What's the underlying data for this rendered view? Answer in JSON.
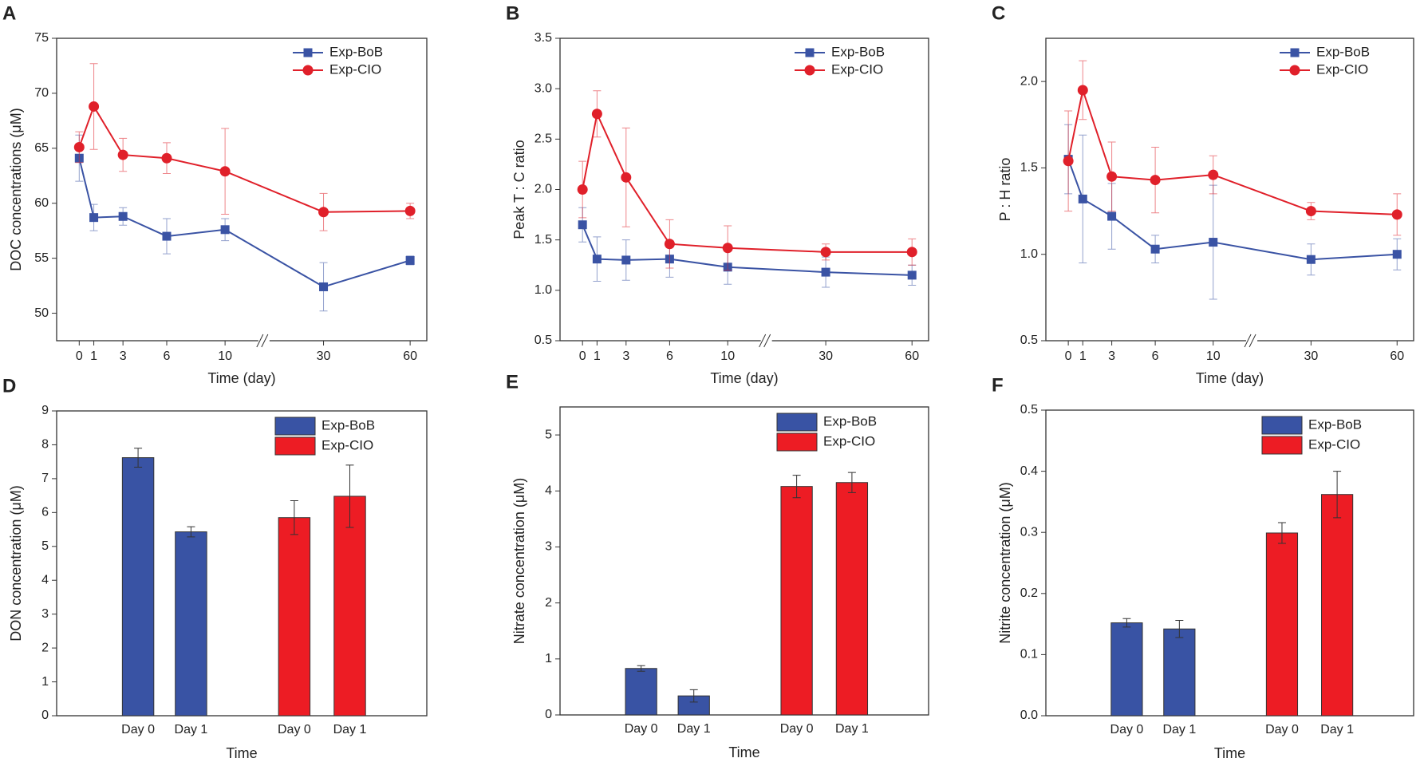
{
  "chart_data": [
    {
      "type": "line",
      "panel_label": "A",
      "x_label": "Time (day)",
      "y_label": "DOC concentrations (μM)",
      "x": [
        0,
        1,
        3,
        6,
        10,
        30,
        60
      ],
      "xticks": [
        0,
        1,
        3,
        6,
        10,
        30,
        60
      ],
      "xlim": [
        0,
        60
      ],
      "xbreak": [
        10,
        30
      ],
      "ylim": [
        47.5,
        75
      ],
      "yticks": [
        50,
        55,
        60,
        65,
        70,
        75
      ],
      "legend": "upper right",
      "series": [
        {
          "name": "Exp-BoB",
          "color": "#3a53a4",
          "marker": "square",
          "values": [
            64.1,
            58.7,
            58.8,
            57.0,
            57.6,
            52.4,
            54.8
          ],
          "errors": [
            2.1,
            1.2,
            0.8,
            1.6,
            1.0,
            2.2,
            0.4
          ]
        },
        {
          "name": "Exp-CIO",
          "color": "#e0202a",
          "marker": "circle",
          "values": [
            65.1,
            68.8,
            64.4,
            64.1,
            62.9,
            59.2,
            59.3
          ],
          "errors": [
            1.4,
            3.9,
            1.5,
            1.4,
            3.9,
            1.7,
            0.7
          ]
        }
      ]
    },
    {
      "type": "line",
      "panel_label": "B",
      "x_label": "Time (day)",
      "y_label": "Peak T : C ratio",
      "x": [
        0,
        1,
        3,
        6,
        10,
        30,
        60
      ],
      "xticks": [
        0,
        1,
        3,
        6,
        10,
        30,
        60
      ],
      "xlim": [
        0,
        60
      ],
      "xbreak": [
        10,
        30
      ],
      "ylim": [
        0.5,
        3.5
      ],
      "yticks": [
        0.5,
        {
          "value": 1,
          "label": "1.0"
        },
        1.5,
        {
          "value": 2,
          "label": "2.0"
        },
        2.5,
        {
          "value": 3,
          "label": "3.0"
        },
        3.5
      ],
      "legend": "upper right",
      "series": [
        {
          "name": "Exp-BoB",
          "color": "#3a53a4",
          "marker": "square",
          "values": [
            1.65,
            1.31,
            1.3,
            1.31,
            1.23,
            1.18,
            1.15
          ],
          "errors": [
            0.17,
            0.22,
            0.2,
            0.18,
            0.17,
            0.15,
            0.1
          ]
        },
        {
          "name": "Exp-CIO",
          "color": "#e0202a",
          "marker": "circle",
          "values": [
            2.0,
            2.75,
            2.12,
            1.46,
            1.42,
            1.38,
            1.38
          ],
          "errors": [
            0.28,
            0.23,
            0.49,
            0.24,
            0.22,
            0.08,
            0.13
          ]
        }
      ]
    },
    {
      "type": "line",
      "panel_label": "C",
      "x_label": "Time (day)",
      "y_label": "P : H ratio",
      "x": [
        0,
        1,
        3,
        6,
        10,
        30,
        60
      ],
      "xticks": [
        0,
        1,
        3,
        6,
        10,
        30,
        60
      ],
      "xlim": [
        0,
        60
      ],
      "xbreak": [
        10,
        30
      ],
      "ylim": [
        0.5,
        2.25
      ],
      "yticks": [
        0.5,
        {
          "value": 1,
          "label": "1.0"
        },
        1.5,
        {
          "value": 2,
          "label": "2.0"
        }
      ],
      "legend": "upper right",
      "series": [
        {
          "name": "Exp-BoB",
          "color": "#3a53a4",
          "marker": "square",
          "values": [
            1.55,
            1.32,
            1.22,
            1.03,
            1.07,
            0.97,
            1.0
          ],
          "errors": [
            0.2,
            0.37,
            0.19,
            0.08,
            0.33,
            0.09,
            0.09
          ]
        },
        {
          "name": "Exp-CIO",
          "color": "#e0202a",
          "marker": "circle",
          "values": [
            1.54,
            1.95,
            1.45,
            1.43,
            1.46,
            1.25,
            1.23
          ],
          "errors": [
            0.29,
            0.17,
            0.2,
            0.19,
            0.11,
            0.05,
            0.12
          ]
        }
      ]
    },
    {
      "type": "bar",
      "panel_label": "D",
      "x_label": "Time",
      "y_label": "DON concentration (μM)",
      "categories": [
        "Day 0",
        "Day 1",
        "Day 0",
        "Day 1"
      ],
      "ylim": [
        0,
        9
      ],
      "yticks": [
        0,
        1,
        2,
        3,
        4,
        5,
        6,
        7,
        8,
        9
      ],
      "legend": "upper right",
      "series": [
        {
          "name": "Exp-BoB",
          "color": "#3953a4",
          "values": [
            7.62,
            5.43,
            null,
            null
          ],
          "errors": [
            0.28,
            0.15,
            null,
            null
          ]
        },
        {
          "name": "Exp-CIO",
          "color": "#ed1c24",
          "values": [
            null,
            null,
            5.85,
            6.48
          ],
          "errors": [
            null,
            null,
            0.5,
            0.92
          ]
        }
      ]
    },
    {
      "type": "bar",
      "panel_label": "E",
      "x_label": "Time",
      "y_label": "Nitrate concentration (μM)",
      "categories": [
        "Day 0",
        "Day 1",
        "Day 0",
        "Day 1"
      ],
      "ylim": [
        0,
        5.5
      ],
      "yticks": [
        0,
        1,
        2,
        3,
        4,
        5
      ],
      "legend": "upper right",
      "series": [
        {
          "name": "Exp-BoB",
          "color": "#3953a4",
          "values": [
            0.83,
            0.34,
            null,
            null
          ],
          "errors": [
            0.05,
            0.11,
            null,
            null
          ]
        },
        {
          "name": "Exp-CIO",
          "color": "#ed1c24",
          "values": [
            null,
            null,
            4.08,
            4.15
          ],
          "errors": [
            null,
            null,
            0.2,
            0.18
          ]
        }
      ]
    },
    {
      "type": "bar",
      "panel_label": "F",
      "x_label": "Time",
      "y_label": "Nitrite concentration (μM)",
      "categories": [
        "Day 0",
        "Day 1",
        "Day 0",
        "Day 1"
      ],
      "ylim": [
        0,
        0.5
      ],
      "yticks": [
        {
          "value": 0,
          "label": "0.0"
        },
        0.1,
        0.2,
        0.3,
        0.4,
        0.5
      ],
      "legend": "upper right",
      "series": [
        {
          "name": "Exp-BoB",
          "color": "#3953a4",
          "values": [
            0.152,
            0.142,
            null,
            null
          ],
          "errors": [
            0.007,
            0.014,
            null,
            null
          ]
        },
        {
          "name": "Exp-CIO",
          "color": "#ed1c24",
          "values": [
            null,
            null,
            0.299,
            0.362
          ],
          "errors": [
            null,
            null,
            0.017,
            0.038
          ]
        }
      ]
    }
  ]
}
